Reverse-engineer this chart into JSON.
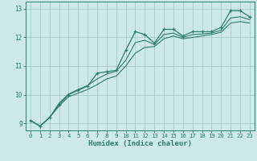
{
  "xlabel": "Humidex (Indice chaleur)",
  "bg_color": "#cce8e8",
  "line_color": "#2e7d6e",
  "grid_color": "#aacccc",
  "xlim": [
    -0.5,
    23.5
  ],
  "ylim": [
    8.75,
    13.25
  ],
  "xticks": [
    0,
    1,
    2,
    3,
    4,
    5,
    6,
    7,
    8,
    9,
    10,
    11,
    12,
    13,
    14,
    15,
    16,
    17,
    18,
    19,
    20,
    21,
    22,
    23
  ],
  "yticks": [
    9,
    10,
    11,
    12,
    13
  ],
  "x": [
    0,
    1,
    2,
    3,
    4,
    5,
    6,
    7,
    8,
    9,
    10,
    11,
    12,
    13,
    14,
    15,
    16,
    17,
    18,
    19,
    20,
    21,
    22,
    23
  ],
  "y_main": [
    9.1,
    8.9,
    9.2,
    9.65,
    10.0,
    10.15,
    10.3,
    10.75,
    10.8,
    10.85,
    11.55,
    12.2,
    12.1,
    11.8,
    12.28,
    12.28,
    12.05,
    12.2,
    12.2,
    12.2,
    12.35,
    12.93,
    12.93,
    12.72
  ],
  "y_low": [
    9.1,
    8.9,
    9.2,
    9.6,
    9.93,
    10.05,
    10.18,
    10.35,
    10.55,
    10.65,
    11.0,
    11.45,
    11.65,
    11.68,
    11.95,
    12.05,
    11.95,
    12.0,
    12.05,
    12.1,
    12.18,
    12.5,
    12.55,
    12.5
  ],
  "y_high": [
    9.1,
    8.9,
    9.2,
    9.7,
    10.02,
    10.18,
    10.32,
    10.55,
    10.72,
    10.82,
    11.2,
    11.82,
    11.9,
    11.75,
    12.1,
    12.15,
    12.0,
    12.1,
    12.12,
    12.15,
    12.25,
    12.68,
    12.72,
    12.62
  ]
}
